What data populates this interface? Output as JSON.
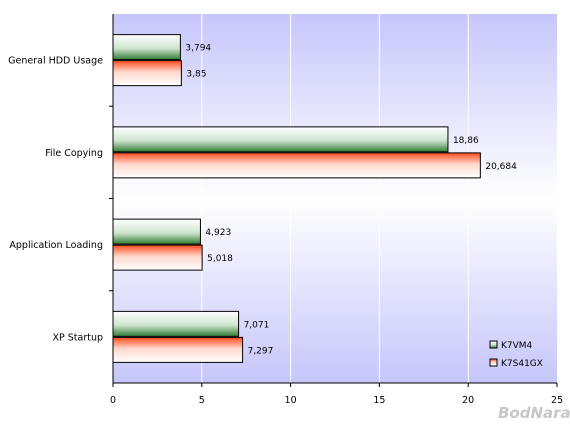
{
  "chart_data": {
    "type": "bar",
    "orientation": "horizontal",
    "categories": [
      "General HDD Usage",
      "File Copying",
      "Application Loading",
      "XP Startup"
    ],
    "series": [
      {
        "name": "K7VM4",
        "values": [
          3.794,
          18.86,
          4.923,
          7.071
        ],
        "value_labels": [
          "3,794",
          "18,86",
          "4,923",
          "7,071"
        ],
        "color": "#2e7d32"
      },
      {
        "name": "K7S41GX",
        "values": [
          3.85,
          20.684,
          5.018,
          7.297
        ],
        "value_labels": [
          "3,85",
          "20,684",
          "5,018",
          "7,297"
        ],
        "color": "#ff4a1c"
      }
    ],
    "xlim": [
      0,
      25
    ],
    "xticks": [
      "0",
      "5",
      "10",
      "15",
      "20",
      "25"
    ],
    "title": "",
    "xlabel": "",
    "ylabel": "",
    "grid": true,
    "legend_position": "bottom-right",
    "background": "#c8c8ff",
    "watermark": "BodNara"
  }
}
